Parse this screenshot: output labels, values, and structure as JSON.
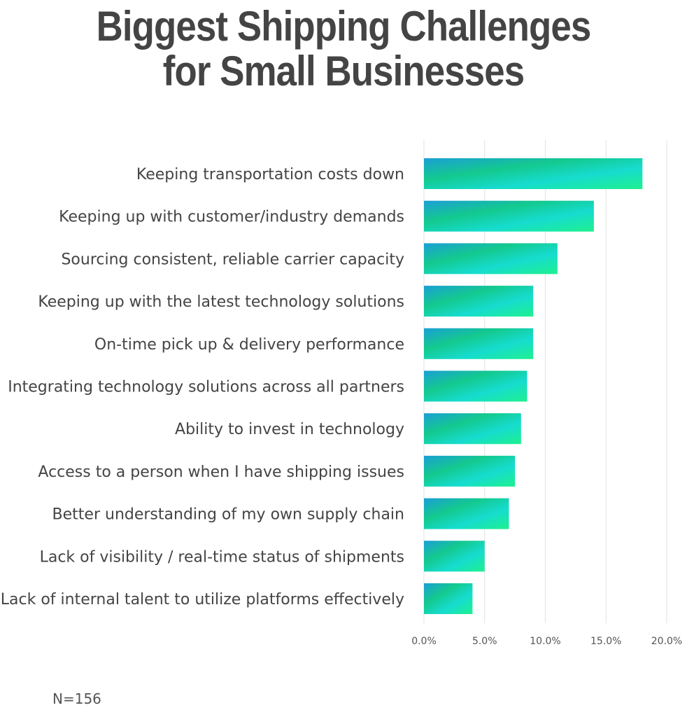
{
  "chart_data": {
    "type": "bar",
    "orientation": "horizontal",
    "title": "Biggest Shipping Challenges for Small Businesses",
    "title_lines": [
      "Biggest Shipping Challenges",
      "for Small Businesses"
    ],
    "categories": [
      "Keeping transportation costs down",
      "Keeping up with customer/industry demands",
      "Sourcing consistent, reliable carrier capacity",
      "Keeping up with the latest technology solutions",
      "On-time pick up & delivery performance",
      "Integrating technology solutions across all partners",
      "Ability to invest in technology",
      "Access to a person when I have shipping issues",
      "Better understanding of my own supply chain",
      "Lack of visibility / real-time status of shipments",
      "Lack of internal talent to utilize platforms effectively"
    ],
    "values": [
      18.0,
      14.0,
      11.0,
      9.0,
      9.0,
      8.5,
      8.0,
      7.5,
      7.0,
      5.0,
      4.0
    ],
    "unit": "%",
    "xlim": [
      0,
      20
    ],
    "xticks": [
      "0.0%",
      "5.0%",
      "10.0%",
      "15.0%",
      "20.0%"
    ],
    "xtick_values": [
      0,
      5,
      10,
      15,
      20
    ],
    "grid": "vertical",
    "legend": "none",
    "colors": {
      "gradient_start": "#1a9fd6",
      "gradient_mid": "#14c98e",
      "gradient_alt": "#16dccf",
      "gradient_end": "#1ef08f",
      "text": "#444444",
      "grid": "#e2e2e2"
    },
    "note": "N=156"
  }
}
